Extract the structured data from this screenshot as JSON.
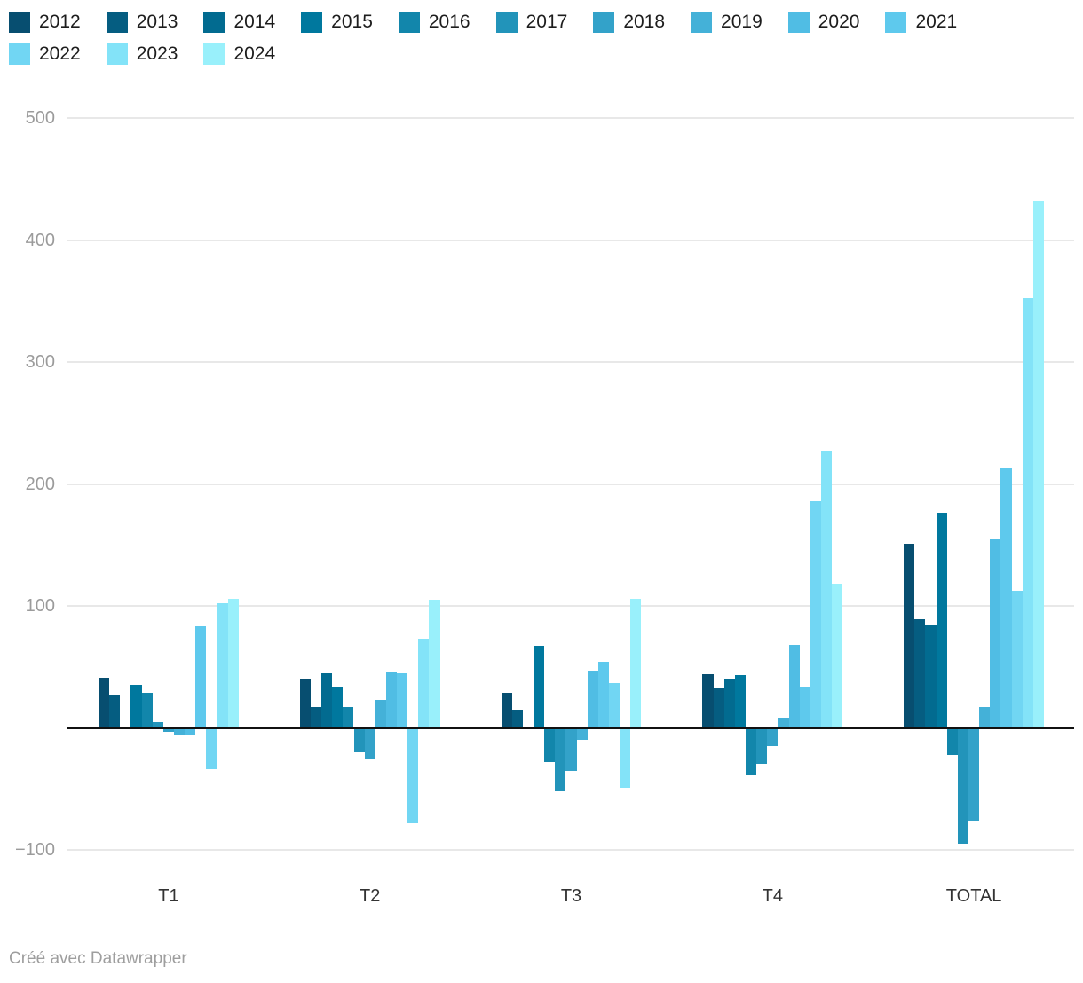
{
  "chart_data": {
    "type": "bar",
    "title": "",
    "xlabel": "",
    "ylabel": "",
    "categories": [
      "T1",
      "T2",
      "T3",
      "T4",
      "TOTAL"
    ],
    "series": [
      {
        "name": "2012",
        "color": "#074e70",
        "values": [
          40,
          39,
          28,
          43,
          150
        ]
      },
      {
        "name": "2013",
        "color": "#055d81",
        "values": [
          26,
          16,
          14,
          32,
          88
        ]
      },
      {
        "name": "2014",
        "color": "#026b90",
        "values": [
          0,
          44,
          0,
          39,
          83
        ]
      },
      {
        "name": "2015",
        "color": "#00789e",
        "values": [
          34,
          33,
          66,
          42,
          175
        ]
      },
      {
        "name": "2016",
        "color": "#1286ab",
        "values": [
          28,
          16,
          -27,
          -38,
          -21
        ]
      },
      {
        "name": "2017",
        "color": "#2294ba",
        "values": [
          4,
          -19,
          -51,
          -28,
          -94
        ]
      },
      {
        "name": "2018",
        "color": "#33a2c9",
        "values": [
          -2,
          -25,
          -34,
          -14,
          -75
        ]
      },
      {
        "name": "2019",
        "color": "#44b1d8",
        "values": [
          -4,
          22,
          -9,
          7,
          16
        ]
      },
      {
        "name": "2020",
        "color": "#50bde4",
        "values": [
          -4,
          45,
          46,
          67,
          154
        ]
      },
      {
        "name": "2021",
        "color": "#5ec9ed",
        "values": [
          82,
          44,
          53,
          33,
          212
        ]
      },
      {
        "name": "2022",
        "color": "#71d6f3",
        "values": [
          -33,
          -77,
          36,
          185,
          111
        ]
      },
      {
        "name": "2023",
        "color": "#83e3f8",
        "values": [
          101,
          72,
          -48,
          226,
          351
        ]
      },
      {
        "name": "2024",
        "color": "#99f0fb",
        "values": [
          105,
          104,
          105,
          117,
          431
        ]
      }
    ],
    "ylim": [
      -100,
      500
    ],
    "yticks": [
      {
        "value": 500,
        "label": "500"
      },
      {
        "value": 400,
        "label": "400"
      },
      {
        "value": 300,
        "label": "300"
      },
      {
        "value": 200,
        "label": "200"
      },
      {
        "value": 100,
        "label": "100"
      },
      {
        "value": -100,
        "label": "−100"
      }
    ],
    "grid": "horizontal",
    "legend_position": "top"
  },
  "footer": {
    "text": "Créé avec Datawrapper"
  }
}
